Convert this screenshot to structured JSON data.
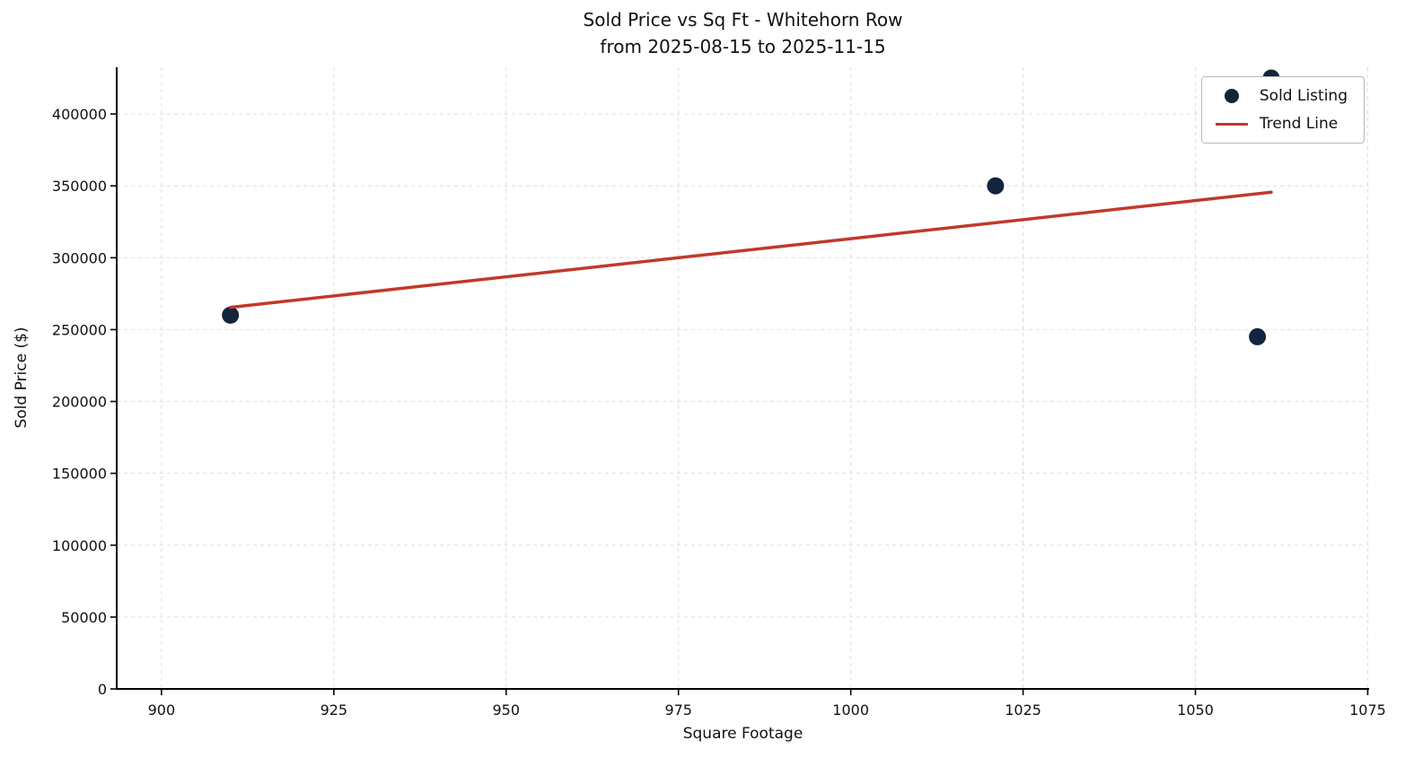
{
  "figure": {
    "title": "Sold Price vs Sq Ft - Whitehorn Row",
    "subtitle": "from 2025-08-15 to 2025-11-15",
    "xlabel": "Square Footage",
    "ylabel": "Sold Price ($)"
  },
  "legend": {
    "position": "upper right",
    "items": [
      {
        "label": "Sold Listing",
        "marker": "dot"
      },
      {
        "label": "Trend Line",
        "marker": "line"
      }
    ]
  },
  "chart_data": {
    "type": "scatter",
    "title": "Sold Price vs Sq Ft - Whitehorn Row",
    "subtitle": "from 2025-08-15 to 2025-11-15",
    "xlabel": "Square Footage",
    "ylabel": "Sold Price ($)",
    "xlim": [
      893.5,
      1075.2
    ],
    "ylim": [
      0,
      432500
    ],
    "x_ticks": [
      900,
      925,
      950,
      975,
      1000,
      1025,
      1050,
      1075
    ],
    "y_ticks": [
      0,
      50000,
      100000,
      150000,
      200000,
      250000,
      300000,
      350000,
      400000
    ],
    "grid": true,
    "grid_style": "dashed",
    "legend_position": "upper right",
    "series": [
      {
        "name": "Sold Listing",
        "type": "scatter",
        "color": "#13243d",
        "points": [
          [
            910,
            260000
          ],
          [
            1021,
            350000
          ],
          [
            1059,
            245000
          ],
          [
            1061,
            425000
          ]
        ]
      },
      {
        "name": "Trend Line",
        "type": "line",
        "color": "#c0392b",
        "points": [
          [
            910,
            265500
          ],
          [
            1061,
            345600
          ]
        ]
      }
    ]
  }
}
